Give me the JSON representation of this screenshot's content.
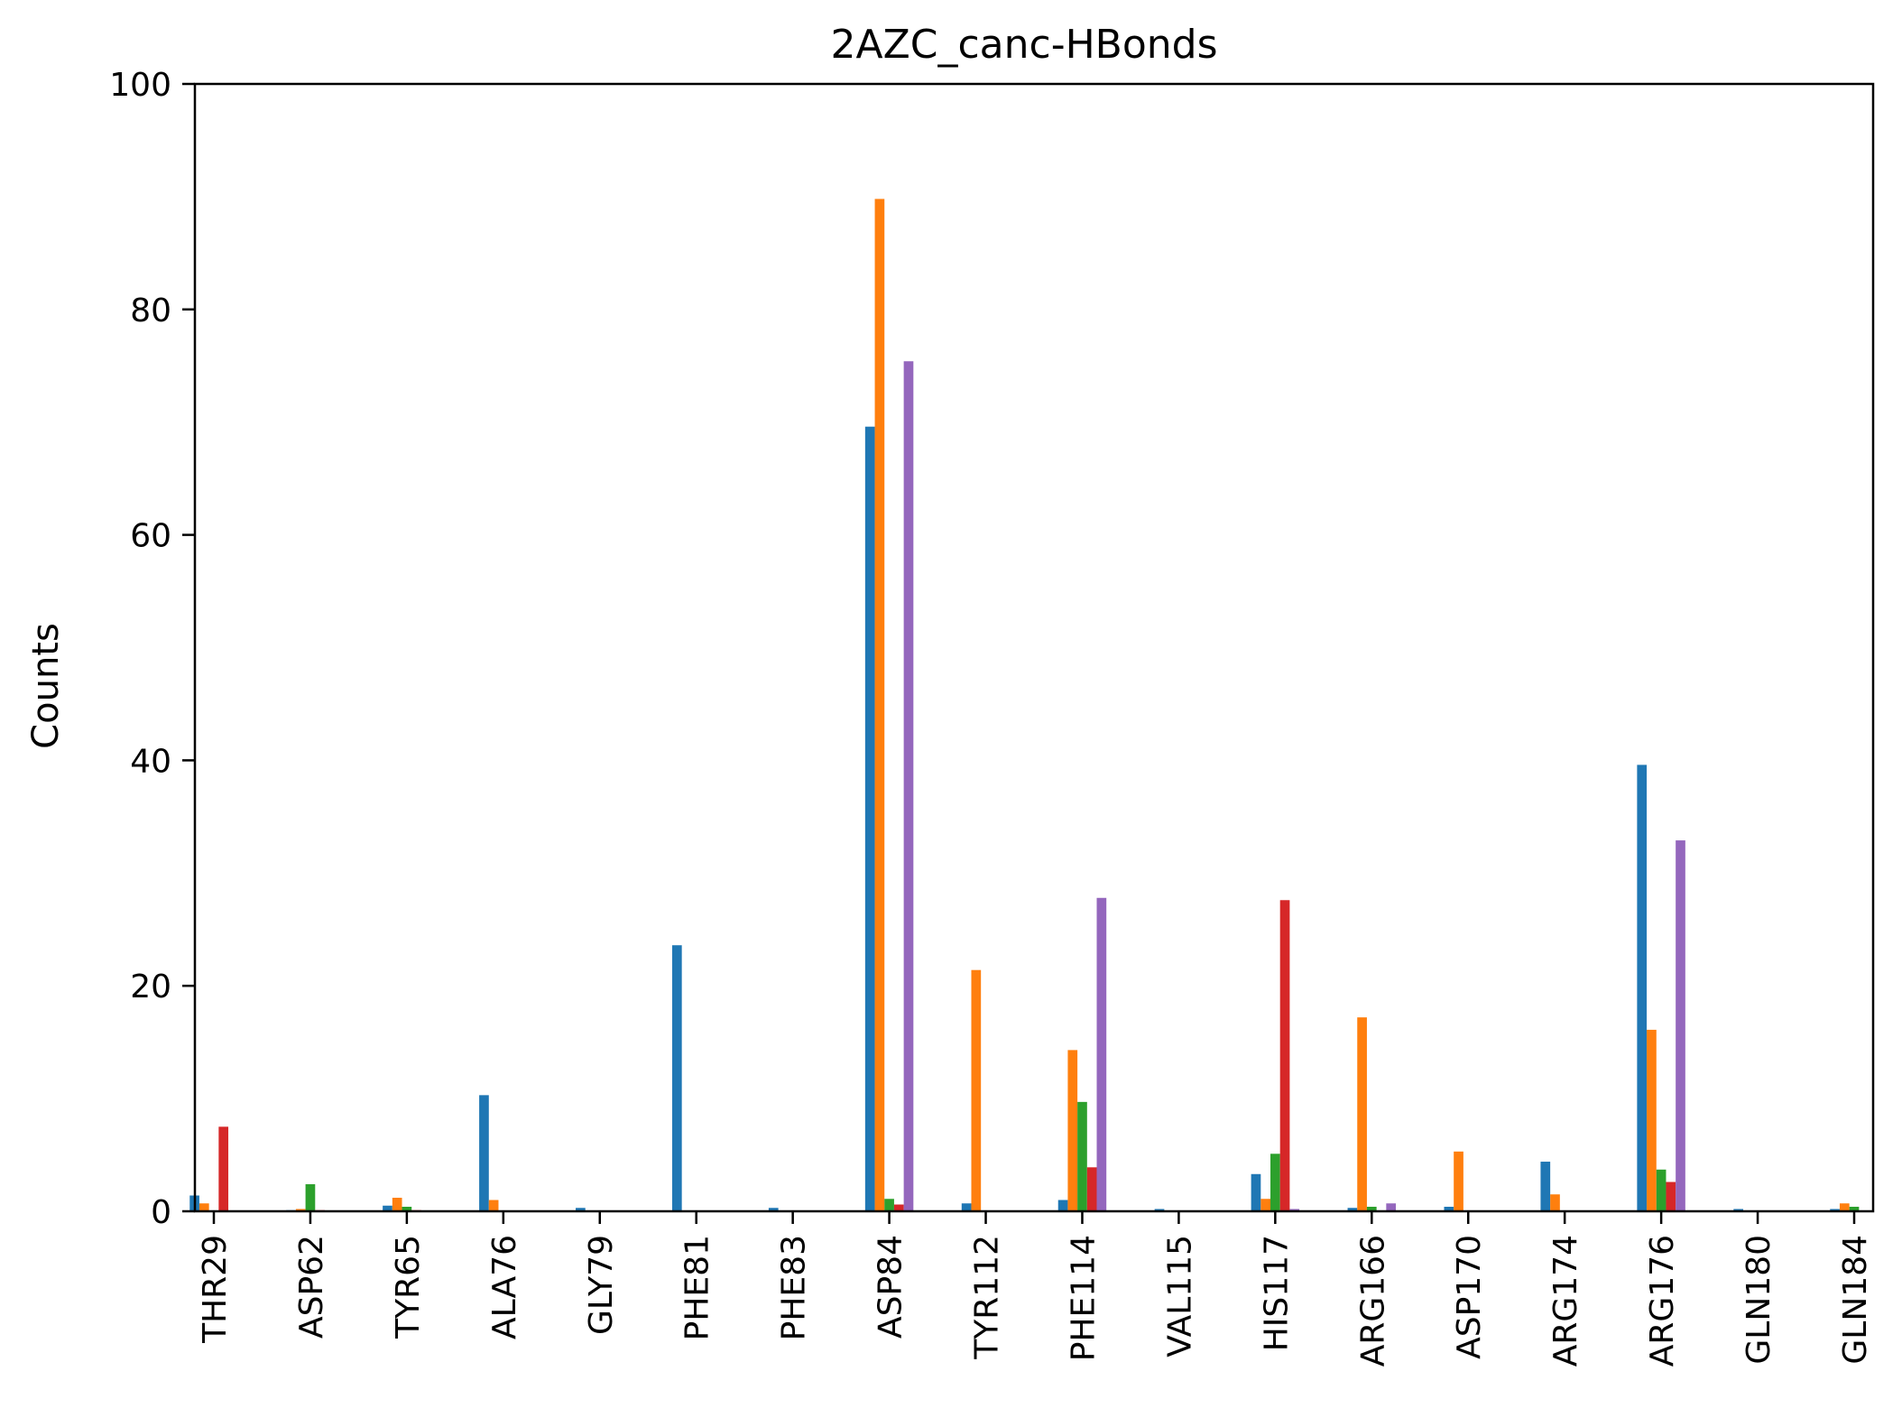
{
  "chart_data": {
    "type": "bar",
    "title": "2AZC_canc-HBonds",
    "xlabel": "",
    "ylabel": "Counts",
    "ylim": [
      0,
      100
    ],
    "yticks": [
      "0",
      "20",
      "40",
      "60",
      "80",
      "100"
    ],
    "grid": false,
    "categories": [
      "THR29",
      "ASP62",
      "TYR65",
      "ALA76",
      "GLY79",
      "PHE81",
      "PHE83",
      "ASP84",
      "TYR112",
      "PHE114",
      "VAL115",
      "HIS117",
      "ARG166",
      "ASP170",
      "ARG174",
      "ARG176",
      "GLN180",
      "GLN184"
    ],
    "series": [
      {
        "color": "#1f77b4",
        "values": [
          1.4,
          0.1,
          0.5,
          10.3,
          0.3,
          23.6,
          0.3,
          69.6,
          0.7,
          1.0,
          0.2,
          3.3,
          0.3,
          0.4,
          4.4,
          39.6,
          0.2,
          0.2
        ]
      },
      {
        "color": "#ff7f0e",
        "values": [
          0.7,
          0.2,
          1.2,
          1.0,
          0.0,
          0.0,
          0.0,
          89.8,
          21.4,
          14.3,
          0.0,
          1.1,
          17.2,
          5.3,
          1.5,
          16.1,
          0.0,
          0.7
        ]
      },
      {
        "color": "#2ca02c",
        "values": [
          0.0,
          2.4,
          0.4,
          0.0,
          0.0,
          0.0,
          0.0,
          1.1,
          0.0,
          9.7,
          0.0,
          5.1,
          0.4,
          0.0,
          0.0,
          3.7,
          0.0,
          0.4
        ]
      },
      {
        "color": "#d62728",
        "values": [
          7.5,
          0.1,
          0.1,
          0.0,
          0.0,
          0.0,
          0.0,
          0.6,
          0.0,
          3.9,
          0.0,
          27.6,
          0.0,
          0.0,
          0.0,
          2.6,
          0.0,
          0.0
        ]
      },
      {
        "color": "#9467bd",
        "values": [
          0.0,
          0.0,
          0.0,
          0.0,
          0.0,
          0.0,
          0.0,
          75.4,
          0.0,
          27.8,
          0.0,
          0.2,
          0.7,
          0.0,
          0.0,
          32.9,
          0.0,
          0.0
        ]
      }
    ]
  }
}
